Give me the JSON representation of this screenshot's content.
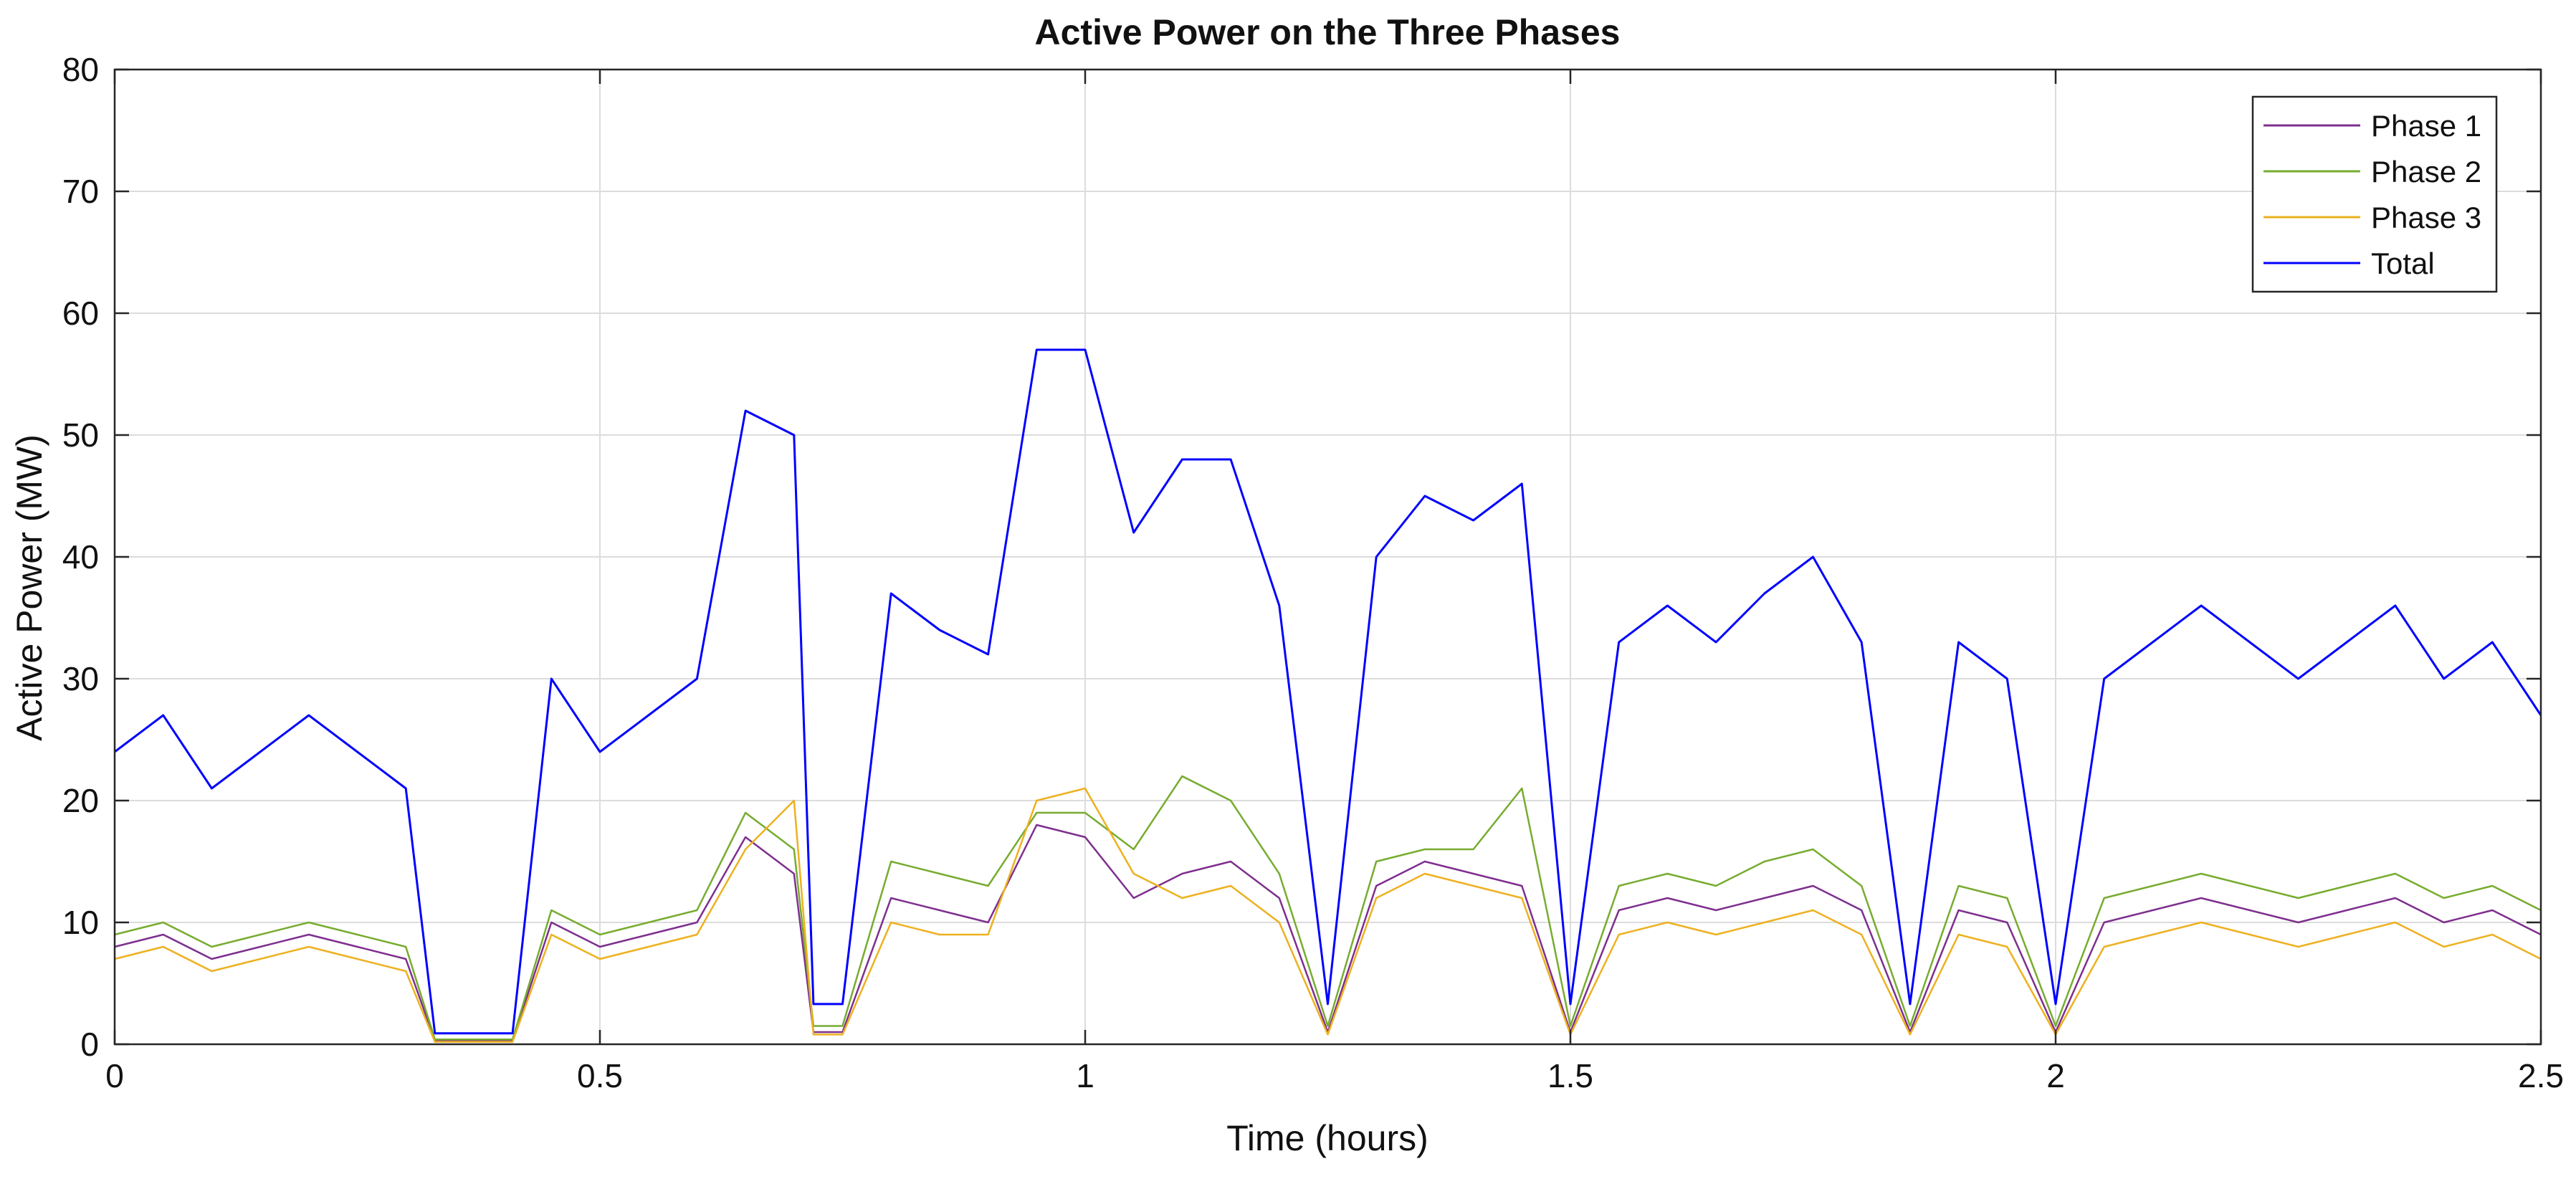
{
  "chart_data": {
    "type": "line",
    "title": "Active Power on the Three Phases",
    "xlabel": "Time (hours)",
    "ylabel": "Active Power (MW)",
    "xlim": [
      0,
      2.5
    ],
    "ylim": [
      0,
      80
    ],
    "xticks": [
      0,
      0.5,
      1,
      1.5,
      2,
      2.5
    ],
    "xtick_labels": [
      "0",
      "0.5",
      "1",
      "1.5",
      "2",
      "2.5"
    ],
    "yticks": [
      0,
      10,
      20,
      30,
      40,
      50,
      60,
      70,
      80
    ],
    "ytick_labels": [
      "0",
      "10",
      "20",
      "30",
      "40",
      "50",
      "60",
      "70",
      "80"
    ],
    "grid": true,
    "legend_position": "top-right",
    "x": [
      0,
      0.05,
      0.1,
      0.15,
      0.2,
      0.25,
      0.3,
      0.33,
      0.37,
      0.41,
      0.45,
      0.5,
      0.55,
      0.6,
      0.65,
      0.7,
      0.72,
      0.75,
      0.8,
      0.85,
      0.9,
      0.95,
      1.0,
      1.05,
      1.1,
      1.15,
      1.2,
      1.25,
      1.3,
      1.35,
      1.4,
      1.45,
      1.5,
      1.55,
      1.6,
      1.65,
      1.7,
      1.75,
      1.8,
      1.85,
      1.9,
      1.95,
      2.0,
      2.05,
      2.1,
      2.15,
      2.2,
      2.25,
      2.3,
      2.35,
      2.4,
      2.45,
      2.5
    ],
    "series": [
      {
        "name": "Phase 1",
        "color": "#7E2F8E",
        "values": [
          8,
          9,
          7,
          8,
          9,
          8,
          7,
          0.3,
          0.3,
          0.3,
          10,
          8,
          9,
          10,
          17,
          14,
          1,
          1,
          12,
          11,
          10,
          18,
          17,
          12,
          14,
          15,
          12,
          1,
          13,
          15,
          14,
          13,
          1,
          11,
          12,
          11,
          12,
          13,
          11,
          1,
          11,
          10,
          1,
          10,
          11,
          12,
          11,
          10,
          11,
          12,
          10,
          11,
          9
        ]
      },
      {
        "name": "Phase 2",
        "color": "#77AC30",
        "values": [
          9,
          10,
          8,
          9,
          10,
          9,
          8,
          0.4,
          0.4,
          0.4,
          11,
          9,
          10,
          11,
          19,
          16,
          1.5,
          1.5,
          15,
          14,
          13,
          19,
          19,
          16,
          22,
          20,
          14,
          1.5,
          15,
          16,
          16,
          21,
          1.5,
          13,
          14,
          13,
          15,
          16,
          13,
          1.5,
          13,
          12,
          1.5,
          12,
          13,
          14,
          13,
          12,
          13,
          14,
          12,
          13,
          11
        ]
      },
      {
        "name": "Phase 3",
        "color": "#EDB120",
        "values": [
          7,
          8,
          6,
          7,
          8,
          7,
          6,
          0.2,
          0.2,
          0.2,
          9,
          7,
          8,
          9,
          16,
          20,
          0.8,
          0.8,
          10,
          9,
          9,
          20,
          21,
          14,
          12,
          13,
          10,
          0.8,
          12,
          14,
          13,
          12,
          0.8,
          9,
          10,
          9,
          10,
          11,
          9,
          0.8,
          9,
          8,
          0.8,
          8,
          9,
          10,
          9,
          8,
          9,
          10,
          8,
          9,
          7
        ]
      },
      {
        "name": "Total",
        "color": "#0000FF",
        "values": [
          24,
          27,
          21,
          24,
          27,
          24,
          21,
          0.9,
          0.9,
          0.9,
          30,
          24,
          27,
          30,
          52,
          50,
          3.3,
          3.3,
          37,
          34,
          32,
          57,
          57,
          42,
          48,
          48,
          36,
          3.3,
          40,
          45,
          43,
          46,
          3.3,
          33,
          36,
          33,
          37,
          40,
          33,
          3.3,
          33,
          30,
          3.3,
          30,
          33,
          36,
          33,
          30,
          33,
          36,
          30,
          33,
          27
        ]
      }
    ]
  }
}
